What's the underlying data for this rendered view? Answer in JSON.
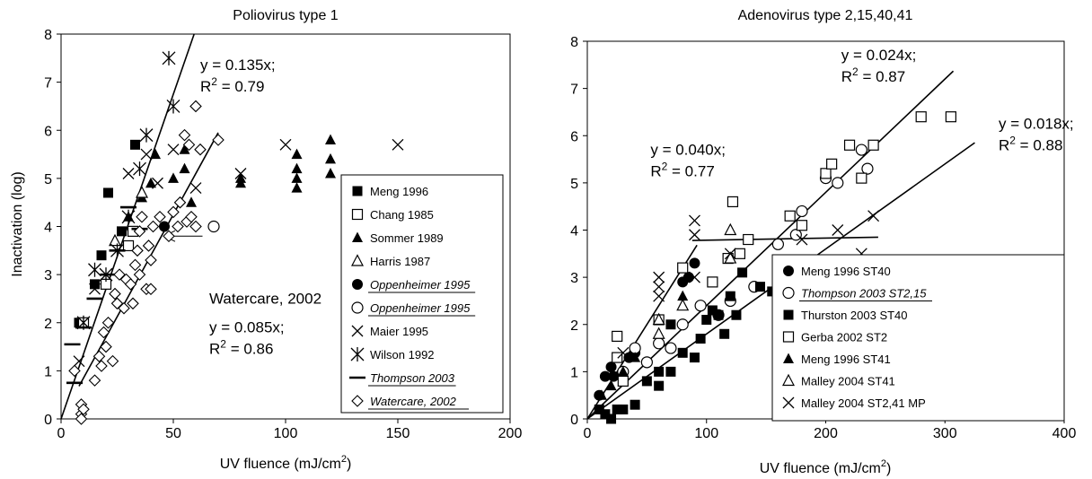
{
  "chart_data": [
    {
      "type": "scatter",
      "title": "Poliovirus type 1",
      "xlabel": "UV fluence (mJ/cm",
      "xlabel_sup": "2",
      "xlabel_close": ")",
      "ylabel": "Inactivation (log)",
      "xlim": [
        0,
        200
      ],
      "ylim": [
        0,
        8
      ],
      "xticks": [
        0,
        50,
        100,
        150,
        200
      ],
      "yticks": [
        0,
        1,
        2,
        3,
        4,
        5,
        6,
        7,
        8
      ],
      "legend_position": "right",
      "series": [
        {
          "name": "Meng 1996",
          "marker": "square-filled",
          "underline": false,
          "points": [
            [
              8,
              2.0
            ],
            [
              15,
              2.8
            ],
            [
              18,
              3.4
            ],
            [
              21,
              4.7
            ],
            [
              27,
              3.9
            ],
            [
              33,
              5.7
            ]
          ]
        },
        {
          "name": "Chang 1985",
          "marker": "square-open",
          "underline": false,
          "points": [
            [
              10,
              2.0
            ],
            [
              20,
              2.8
            ],
            [
              30,
              3.6
            ],
            [
              32,
              3.9
            ]
          ]
        },
        {
          "name": "Sommer 1989",
          "marker": "triangle-filled",
          "underline": false,
          "points": [
            [
              30,
              4.2
            ],
            [
              36,
              4.6
            ],
            [
              40,
              4.9
            ],
            [
              42,
              5.5
            ],
            [
              50,
              5.0
            ],
            [
              55,
              5.2
            ],
            [
              55,
              5.6
            ],
            [
              58,
              4.5
            ],
            [
              80,
              4.9
            ],
            [
              80,
              5.0
            ],
            [
              105,
              4.8
            ],
            [
              105,
              5.0
            ],
            [
              105,
              5.2
            ],
            [
              105,
              5.5
            ],
            [
              120,
              5.1
            ],
            [
              120,
              5.4
            ],
            [
              120,
              5.8
            ]
          ]
        },
        {
          "name": "Harris 1987",
          "marker": "triangle-open",
          "underline": false,
          "points": [
            [
              24,
              3.7
            ],
            [
              36,
              4.7
            ]
          ]
        },
        {
          "name": "Oppenheimer 1995",
          "marker": "circle-filled",
          "underline": true,
          "points": [
            [
              46,
              4.0
            ]
          ]
        },
        {
          "name": "Oppenheimer 1995",
          "marker": "circle-open",
          "underline": true,
          "points": [
            [
              68,
              4.0
            ]
          ]
        },
        {
          "name": "Maier 1995",
          "marker": "x",
          "underline": false,
          "points": [
            [
              8,
              1.2
            ],
            [
              15,
              2.7
            ],
            [
              30,
              5.1
            ],
            [
              38,
              5.5
            ],
            [
              43,
              4.9
            ],
            [
              50,
              5.6
            ],
            [
              60,
              4.8
            ],
            [
              80,
              5.1
            ],
            [
              100,
              5.7
            ],
            [
              150,
              5.7
            ]
          ]
        },
        {
          "name": "Wilson 1992",
          "marker": "asterisk",
          "underline": false,
          "points": [
            [
              10,
              2.0
            ],
            [
              15,
              3.1
            ],
            [
              20,
              3.0
            ],
            [
              25,
              3.5
            ],
            [
              30,
              4.2
            ],
            [
              35,
              5.2
            ],
            [
              38,
              5.9
            ],
            [
              48,
              7.5
            ],
            [
              50,
              6.5
            ]
          ]
        },
        {
          "name": "Thompson 2003",
          "marker": "dash",
          "underline": true,
          "points": [
            [
              5,
              1.55
            ],
            [
              6,
              0.75
            ],
            [
              10,
              1.9
            ],
            [
              15,
              2.5
            ],
            [
              21,
              3.0
            ],
            [
              25,
              3.5
            ],
            [
              30,
              4.4
            ],
            [
              35,
              3.95
            ]
          ]
        },
        {
          "name": "Watercare, 2002",
          "marker": "diamond-open",
          "underline": true,
          "points": [
            [
              6,
              1.0
            ],
            [
              9,
              0.3
            ],
            [
              9,
              0.1
            ],
            [
              9,
              0.0
            ],
            [
              10,
              0.2
            ],
            [
              15,
              0.8
            ],
            [
              17,
              1.3
            ],
            [
              18,
              1.1
            ],
            [
              19,
              1.8
            ],
            [
              20,
              1.5
            ],
            [
              21,
              2.0
            ],
            [
              23,
              1.2
            ],
            [
              24,
              2.6
            ],
            [
              25,
              2.4
            ],
            [
              26,
              3.0
            ],
            [
              28,
              2.3
            ],
            [
              29,
              2.9
            ],
            [
              31,
              2.8
            ],
            [
              32,
              2.4
            ],
            [
              33,
              3.2
            ],
            [
              34,
              3.5
            ],
            [
              35,
              3.9
            ],
            [
              35,
              3.0
            ],
            [
              36,
              4.2
            ],
            [
              38,
              2.7
            ],
            [
              39,
              3.6
            ],
            [
              40,
              3.3
            ],
            [
              40,
              2.7
            ],
            [
              41,
              4.0
            ],
            [
              44,
              4.2
            ],
            [
              48,
              3.8
            ],
            [
              50,
              4.3
            ],
            [
              52,
              4.0
            ],
            [
              53,
              4.5
            ],
            [
              55,
              5.9
            ],
            [
              56,
              4.1
            ],
            [
              57,
              5.7
            ],
            [
              58,
              4.2
            ],
            [
              60,
              6.5
            ],
            [
              60,
              4.0
            ],
            [
              62,
              5.6
            ],
            [
              70,
              5.8
            ]
          ]
        }
      ],
      "fit_lines": [
        {
          "slope": 0.135,
          "x_range": [
            0,
            59.3
          ]
        },
        {
          "slope": 0.085,
          "x_range": [
            8,
            70
          ]
        }
      ],
      "annotations": [
        {
          "lines": [
            {
              "text": "y = 0.135x;"
            },
            {
              "text": "R",
              "sup": "2",
              "rest": " = 0.79"
            }
          ],
          "at": [
            62,
            7.25
          ]
        },
        {
          "lines": [
            {
              "text": "Watercare, 2002"
            }
          ],
          "at": [
            66,
            2.4
          ]
        },
        {
          "lines": [
            {
              "text": "y = 0.085x;"
            },
            {
              "text": "R",
              "sup": "2",
              "rest": " = 0.86"
            }
          ],
          "at": [
            66,
            1.8
          ]
        }
      ],
      "arrow": {
        "from": [
          63,
          3.8
        ],
        "to": [
          46,
          3.8
        ]
      }
    },
    {
      "type": "scatter",
      "title": "Adenovirus type 2,15,40,41",
      "xlabel": "UV fluence (mJ/cm",
      "xlabel_sup": "2",
      "xlabel_close": ")",
      "ylabel": "",
      "xlim": [
        0,
        400
      ],
      "ylim": [
        0,
        8
      ],
      "xticks": [
        0,
        100,
        200,
        300,
        400
      ],
      "yticks": [
        0,
        1,
        2,
        3,
        4,
        5,
        6,
        7,
        8
      ],
      "legend_position": "bottom-right",
      "series": [
        {
          "name": "Meng 1996 ST40",
          "marker": "circle-filled",
          "underline": false,
          "points": [
            [
              10,
              0.5
            ],
            [
              15,
              0.9
            ],
            [
              20,
              1.1
            ],
            [
              22,
              0.9
            ],
            [
              35,
              1.3
            ],
            [
              40,
              1.4
            ],
            [
              80,
              2.9
            ],
            [
              85,
              3.0
            ],
            [
              90,
              3.3
            ]
          ]
        },
        {
          "name": "Thompson 2003 ST2,15",
          "marker": "circle-open",
          "underline": true,
          "points": [
            [
              30,
              1.0
            ],
            [
              40,
              1.5
            ],
            [
              50,
              1.2
            ],
            [
              60,
              1.6
            ],
            [
              70,
              1.5
            ],
            [
              80,
              2.0
            ],
            [
              95,
              2.4
            ],
            [
              110,
              2.2
            ],
            [
              120,
              2.5
            ],
            [
              140,
              2.8
            ],
            [
              160,
              3.7
            ],
            [
              175,
              3.9
            ],
            [
              180,
              4.4
            ],
            [
              200,
              5.1
            ],
            [
              210,
              5.0
            ],
            [
              230,
              5.7
            ],
            [
              235,
              5.3
            ]
          ]
        },
        {
          "name": "Thurston 2003 ST40",
          "marker": "square-filled",
          "underline": false,
          "points": [
            [
              10,
              0.2
            ],
            [
              15,
              0.1
            ],
            [
              20,
              0.0
            ],
            [
              25,
              0.2
            ],
            [
              30,
              0.2
            ],
            [
              40,
              0.3
            ],
            [
              50,
              0.8
            ],
            [
              60,
              1.0
            ],
            [
              60,
              0.7
            ],
            [
              70,
              1.0
            ],
            [
              70,
              2.0
            ],
            [
              80,
              1.4
            ],
            [
              90,
              1.3
            ],
            [
              95,
              1.7
            ],
            [
              100,
              2.1
            ],
            [
              105,
              2.3
            ],
            [
              110,
              2.2
            ],
            [
              115,
              1.8
            ],
            [
              120,
              2.6
            ],
            [
              125,
              2.2
            ],
            [
              130,
              3.1
            ],
            [
              145,
              2.8
            ],
            [
              155,
              2.7
            ],
            [
              180,
              3.0
            ]
          ]
        },
        {
          "name": "Gerba 2002 ST2",
          "marker": "square-open",
          "underline": false,
          "points": [
            [
              25,
              1.75
            ],
            [
              25,
              1.3
            ],
            [
              30,
              0.8
            ],
            [
              60,
              2.1
            ],
            [
              80,
              3.2
            ],
            [
              105,
              2.9
            ],
            [
              118,
              3.4
            ],
            [
              122,
              4.6
            ],
            [
              128,
              3.5
            ],
            [
              135,
              3.8
            ],
            [
              170,
              4.3
            ],
            [
              180,
              4.1
            ],
            [
              200,
              5.2
            ],
            [
              205,
              5.4
            ],
            [
              220,
              5.8
            ],
            [
              230,
              5.1
            ],
            [
              240,
              5.8
            ],
            [
              280,
              6.4
            ],
            [
              305,
              6.4
            ]
          ]
        },
        {
          "name": "Meng 1996 ST41",
          "marker": "triangle-filled",
          "underline": false,
          "points": [
            [
              12,
              0.5
            ],
            [
              20,
              0.7
            ],
            [
              30,
              1.0
            ],
            [
              40,
              1.3
            ],
            [
              80,
              2.6
            ]
          ]
        },
        {
          "name": "Malley 2004 ST41",
          "marker": "triangle-open",
          "underline": false,
          "points": [
            [
              60,
              1.8
            ],
            [
              60,
              2.1
            ],
            [
              80,
              2.4
            ],
            [
              120,
              4.0
            ],
            [
              120,
              3.4
            ]
          ]
        },
        {
          "name": "Malley 2004 ST2,41 MP",
          "marker": "x",
          "underline": false,
          "points": [
            [
              30,
              1.4
            ],
            [
              60,
              3.0
            ],
            [
              60,
              2.8
            ],
            [
              60,
              2.6
            ],
            [
              90,
              4.2
            ],
            [
              90,
              3.9
            ],
            [
              90,
              3.0
            ],
            [
              120,
              3.5
            ],
            [
              180,
              3.8
            ],
            [
              210,
              4.0
            ],
            [
              210,
              3.0
            ],
            [
              230,
              3.5
            ],
            [
              240,
              4.3
            ]
          ]
        }
      ],
      "fit_lines": [
        {
          "slope": 0.04,
          "x_range": [
            0,
            92
          ]
        },
        {
          "slope": 0.024,
          "x_range": [
            0,
            307
          ]
        },
        {
          "slope": 0.018,
          "x_range": [
            0,
            325
          ]
        },
        {
          "y_start": 3.78,
          "y_end": 3.85,
          "x_range": [
            88,
            244
          ]
        }
      ],
      "annotations": [
        {
          "lines": [
            {
              "text": "y = 0.024x;"
            },
            {
              "text": "R",
              "sup": "2",
              "rest": " = 0.87"
            }
          ],
          "at": [
            213,
            7.6
          ]
        },
        {
          "lines": [
            {
              "text": "y = 0.018x;"
            },
            {
              "text": "R",
              "sup": "2",
              "rest": " = 0.88"
            }
          ],
          "at": [
            345,
            6.15
          ]
        },
        {
          "lines": [
            {
              "text": "y = 0.040x;"
            },
            {
              "text": "R",
              "sup": "2",
              "rest": " = 0.77"
            }
          ],
          "at": [
            53,
            5.6
          ]
        }
      ]
    }
  ]
}
